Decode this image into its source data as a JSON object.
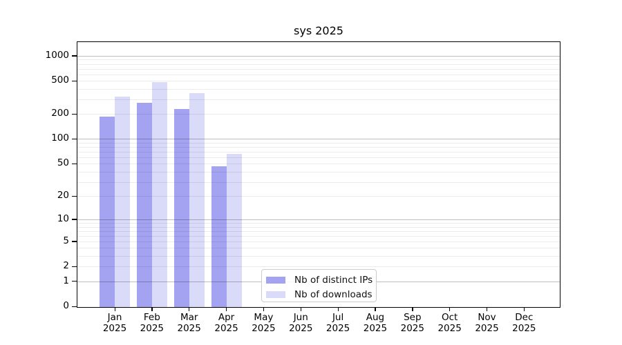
{
  "chart_data": {
    "type": "bar",
    "title": "sys 2025",
    "categories": [
      "Jan",
      "Feb",
      "Mar",
      "Apr",
      "May",
      "Jun",
      "Jul",
      "Aug",
      "Sep",
      "Oct",
      "Nov",
      "Dec"
    ],
    "category_year": "2025",
    "series": [
      {
        "name": "Nb of distinct IPs",
        "color": "#a3a3f2",
        "values": [
          185,
          273,
          228,
          47,
          null,
          null,
          null,
          null,
          null,
          null,
          null,
          null
        ]
      },
      {
        "name": "Nb of downloads",
        "color": "#dadaf9",
        "values": [
          325,
          480,
          357,
          66,
          null,
          null,
          null,
          null,
          null,
          null,
          null,
          null
        ]
      }
    ],
    "yscale": "log10(1+v)",
    "ylim": [
      0,
      1460
    ],
    "y_ticks": [
      0,
      1,
      2,
      5,
      10,
      20,
      50,
      100,
      200,
      500,
      1000
    ],
    "grid": {
      "on": true,
      "drawn_above_bars": true,
      "major_at": [
        1,
        10,
        100,
        1000
      ],
      "minor_at": [
        2,
        3,
        4,
        5,
        6,
        7,
        8,
        9,
        20,
        30,
        40,
        50,
        60,
        70,
        80,
        90,
        200,
        300,
        400,
        500,
        600,
        700,
        800,
        900
      ],
      "major_color": "rgba(0,0,0,0.26)",
      "minor_color": "rgba(0,0,0,0.08)"
    },
    "legend": {
      "position": "bottom-center-inside",
      "entries": [
        "Nb of distinct IPs",
        "Nb of downloads"
      ]
    }
  },
  "colors": {
    "background": "#ffffff",
    "spine": "#000000",
    "text": "#000000",
    "legend_border": "#cccccc"
  }
}
